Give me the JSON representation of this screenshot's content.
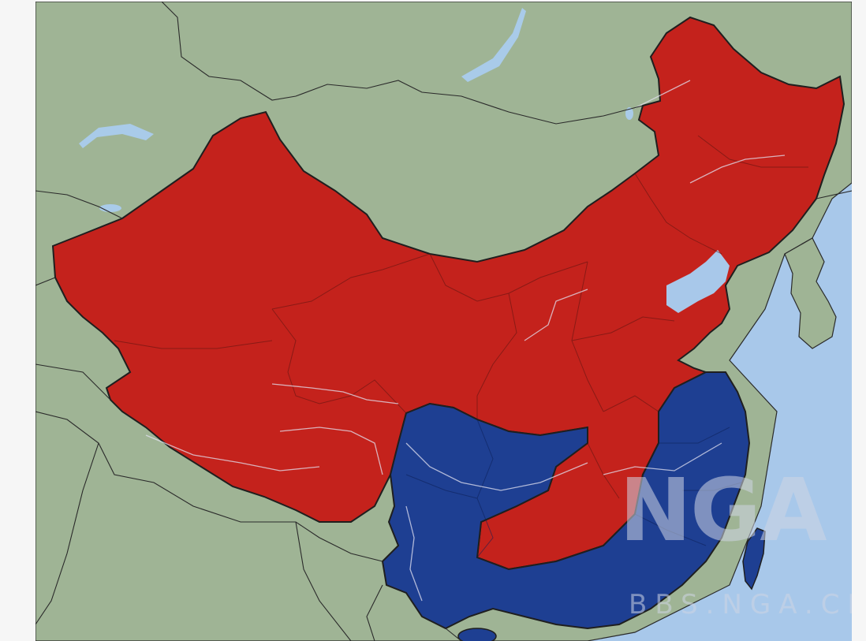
{
  "map": {
    "colors": {
      "sea": "#a8c8ea",
      "land": "#9fb495",
      "lake": "#a9cbe9",
      "region_red": "#c4221c",
      "region_blue": "#1e3f92",
      "border": "#2a2a2a",
      "river": "#e2e2f0"
    },
    "regions": [
      {
        "id": "red",
        "color_key": "region_red"
      },
      {
        "id": "blue",
        "color_key": "region_blue"
      }
    ]
  },
  "watermark": {
    "logo_text": "NGA",
    "url_text": "BBS.NGA.CN",
    "color": "#cfd5e4"
  }
}
